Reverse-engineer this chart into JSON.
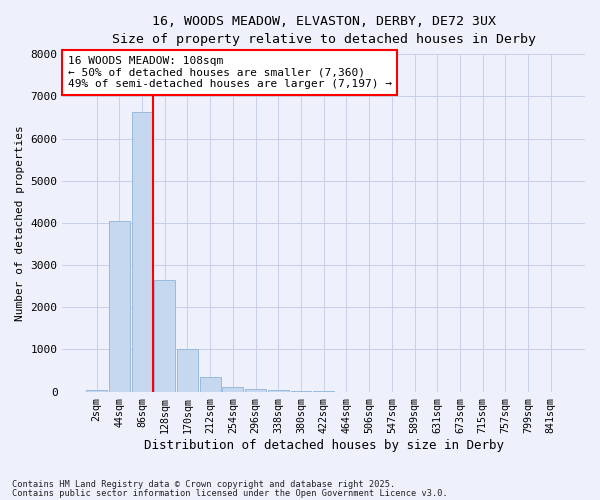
{
  "title_line1": "16, WOODS MEADOW, ELVASTON, DERBY, DE72 3UX",
  "title_line2": "Size of property relative to detached houses in Derby",
  "xlabel": "Distribution of detached houses by size in Derby",
  "ylabel": "Number of detached properties",
  "categories": [
    "2sqm",
    "44sqm",
    "86sqm",
    "128sqm",
    "170sqm",
    "212sqm",
    "254sqm",
    "296sqm",
    "338sqm",
    "380sqm",
    "422sqm",
    "464sqm",
    "506sqm",
    "547sqm",
    "589sqm",
    "631sqm",
    "673sqm",
    "715sqm",
    "757sqm",
    "799sqm",
    "841sqm"
  ],
  "bar_values": [
    50,
    4050,
    6630,
    2650,
    1000,
    340,
    120,
    70,
    30,
    10,
    5,
    3,
    2,
    1,
    1,
    1,
    0,
    0,
    0,
    0,
    0
  ],
  "bar_color": "#c5d8f0",
  "bar_edge_color": "#8eb4d8",
  "vline_x": 2.5,
  "vline_color": "red",
  "ylim": [
    0,
    8000
  ],
  "yticks": [
    0,
    1000,
    2000,
    3000,
    4000,
    5000,
    6000,
    7000,
    8000
  ],
  "annotation_text": "16 WOODS MEADOW: 108sqm\n← 50% of detached houses are smaller (7,360)\n49% of semi-detached houses are larger (7,197) →",
  "footnote1": "Contains HM Land Registry data © Crown copyright and database right 2025.",
  "footnote2": "Contains public sector information licensed under the Open Government Licence v3.0.",
  "background_color": "#eef1fb",
  "plot_bg_color": "#eef1fb",
  "grid_color": "#c8d0e8"
}
